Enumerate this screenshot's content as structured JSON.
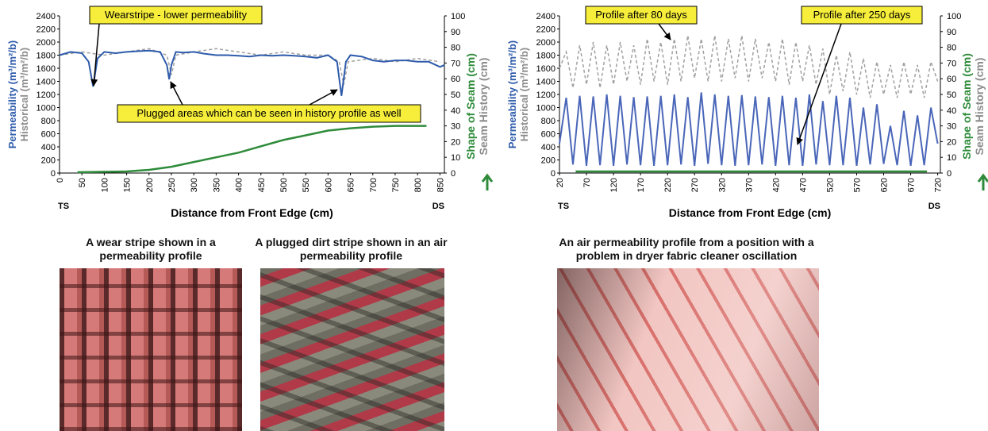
{
  "chart_data": [
    {
      "type": "line",
      "ylabels": [
        "Permeability (m³/m²/b)",
        "Historical (m³/m²/b)"
      ],
      "y2labels": [
        "Shape of Seam (cm)",
        "Seam History (cm)"
      ],
      "ylabel_colors": [
        "#2e5bab",
        "#8c8c8c"
      ],
      "y2label_colors": [
        "#2e8b3a",
        "#8c8c8c"
      ],
      "xlabel": "Distance from Front Edge (cm)",
      "end_labels": [
        "TS",
        "DS"
      ],
      "annotations": [
        "Wearstripe - lower permeability",
        "Plugged areas which can be seen in history profile as well"
      ],
      "xlim": [
        0,
        860
      ],
      "xticks": [
        0,
        50,
        100,
        150,
        200,
        250,
        300,
        350,
        400,
        450,
        500,
        550,
        600,
        650,
        700,
        750,
        800,
        850
      ],
      "ylim": [
        0,
        2400
      ],
      "yticks": [
        0,
        200,
        400,
        600,
        800,
        1000,
        1200,
        1400,
        1600,
        1800,
        2000,
        2200,
        2400
      ],
      "y2lim": [
        0,
        100
      ],
      "y2ticks": [
        0,
        10,
        20,
        30,
        40,
        50,
        60,
        70,
        80,
        90,
        100
      ],
      "series": [
        {
          "color": "#a0a0a0",
          "dashed": true,
          "x": [
            0,
            50,
            100,
            150,
            200,
            240,
            250,
            260,
            300,
            350,
            400,
            450,
            500,
            550,
            600,
            625,
            635,
            645,
            700,
            750,
            800,
            850
          ],
          "values": [
            1800,
            1850,
            1800,
            1850,
            1900,
            1800,
            1500,
            1800,
            1850,
            1900,
            1850,
            1800,
            1850,
            1800,
            1800,
            1700,
            1350,
            1700,
            1750,
            1700,
            1750,
            1700
          ]
        },
        {
          "color": "#2e5bab",
          "dashed": false,
          "x": [
            0,
            25,
            50,
            65,
            75,
            85,
            100,
            125,
            150,
            175,
            200,
            225,
            240,
            245,
            250,
            260,
            275,
            300,
            325,
            350,
            375,
            400,
            425,
            450,
            475,
            500,
            525,
            550,
            575,
            600,
            620,
            630,
            640,
            650,
            675,
            700,
            725,
            750,
            775,
            800,
            825,
            850,
            860
          ],
          "values": [
            1800,
            1850,
            1830,
            1700,
            1320,
            1750,
            1850,
            1830,
            1850,
            1860,
            1870,
            1850,
            1650,
            1430,
            1650,
            1850,
            1840,
            1850,
            1820,
            1800,
            1800,
            1790,
            1780,
            1800,
            1790,
            1800,
            1790,
            1780,
            1760,
            1800,
            1700,
            1180,
            1700,
            1800,
            1780,
            1720,
            1700,
            1720,
            1720,
            1700,
            1700,
            1620,
            1650
          ]
        },
        {
          "color": "#2e8b3a",
          "dashed": false,
          "axis": "y2",
          "x": [
            40,
            150,
            200,
            250,
            300,
            350,
            400,
            450,
            500,
            550,
            600,
            650,
            700,
            750,
            820
          ],
          "values": [
            0.5,
            1,
            2,
            4,
            7,
            10,
            13,
            17,
            21,
            24,
            27,
            28.5,
            29.5,
            30,
            30
          ]
        }
      ]
    },
    {
      "type": "line",
      "ylabels": [
        "Permeability (m³/m²/b)",
        "Historical (m³/m²/b)"
      ],
      "y2labels": [
        "Shape of Seam (cm)",
        "Seam History (cm)"
      ],
      "ylabel_colors": [
        "#2e5bab",
        "#8c8c8c"
      ],
      "y2label_colors": [
        "#2e8b3a",
        "#8c8c8c"
      ],
      "xlabel": "Distance from Front Edge (cm)",
      "end_labels": [
        "TS",
        "DS"
      ],
      "annotations": [
        "Profile after 80 days",
        "Profile after 250 days"
      ],
      "xlim": [
        20,
        725
      ],
      "xticks": [
        20,
        70,
        120,
        170,
        220,
        270,
        320,
        370,
        420,
        470,
        520,
        570,
        620,
        670,
        720
      ],
      "ylim": [
        0,
        2400
      ],
      "yticks": [
        0,
        200,
        400,
        600,
        800,
        1000,
        1200,
        1400,
        1600,
        1800,
        2000,
        2200,
        2400
      ],
      "y2lim": [
        0,
        100
      ],
      "y2ticks": [
        0,
        10,
        20,
        30,
        40,
        50,
        60,
        70,
        80,
        90,
        100
      ],
      "series": [
        {
          "color": "#a0a0a0",
          "dashed": true,
          "x": [
            20,
            32.5,
            45,
            57.5,
            70,
            82.5,
            95,
            107.5,
            120,
            132.5,
            145,
            157.5,
            170,
            182.5,
            195,
            207.5,
            220,
            232.5,
            245,
            257.5,
            270,
            282.5,
            295,
            307.5,
            320,
            332.5,
            345,
            357.5,
            370,
            382.5,
            395,
            407.5,
            420,
            432.5,
            445,
            457.5,
            470,
            482.5,
            495,
            507.5,
            520,
            532.5,
            545,
            557.5,
            570,
            582.5,
            595,
            607.5,
            620,
            632.5,
            645,
            657.5,
            670,
            682.5,
            695,
            707.5,
            720
          ],
          "values": [
            1600,
            1850,
            1300,
            1950,
            1350,
            2000,
            1300,
            1950,
            1350,
            2000,
            1400,
            1950,
            1350,
            2050,
            1400,
            2000,
            1350,
            2050,
            1400,
            2100,
            1450,
            2050,
            1400,
            2100,
            1400,
            2050,
            1450,
            2100,
            1400,
            2050,
            1450,
            2000,
            1400,
            2050,
            1350,
            2000,
            1400,
            1950,
            1350,
            1900,
            1200,
            1800,
            1250,
            1850,
            1200,
            1750,
            1150,
            1700,
            1200,
            1650,
            1150,
            1700,
            1200,
            1650,
            1150,
            1700,
            1400
          ]
        },
        {
          "color": "#4a66b8",
          "dashed": false,
          "x": [
            20,
            32.5,
            45,
            57.5,
            70,
            82.5,
            95,
            107.5,
            120,
            132.5,
            145,
            157.5,
            170,
            182.5,
            195,
            207.5,
            220,
            232.5,
            245,
            257.5,
            270,
            282.5,
            295,
            307.5,
            320,
            332.5,
            345,
            357.5,
            370,
            382.5,
            395,
            407.5,
            420,
            432.5,
            445,
            457.5,
            470,
            482.5,
            495,
            507.5,
            520,
            532.5,
            545,
            557.5,
            570,
            582.5,
            595,
            607.5,
            620,
            632.5,
            645,
            657.5,
            670,
            682.5,
            695,
            707.5,
            720
          ],
          "values": [
            450,
            1150,
            130,
            1180,
            110,
            1170,
            120,
            1200,
            110,
            1180,
            130,
            1160,
            120,
            1170,
            110,
            1180,
            120,
            1200,
            130,
            1160,
            110,
            1230,
            140,
            1200,
            120,
            1180,
            110,
            1190,
            120,
            1170,
            130,
            1160,
            110,
            1180,
            120,
            1150,
            110,
            1200,
            130,
            1100,
            120,
            1180,
            120,
            1150,
            110,
            1000,
            130,
            1050,
            140,
            720,
            120,
            950,
            110,
            880,
            120,
            1000,
            450
          ]
        },
        {
          "color": "#2e8b3a",
          "dashed": false,
          "axis": "y2",
          "x": [
            50,
            700
          ],
          "values": [
            1,
            1
          ]
        }
      ]
    }
  ],
  "captions": [
    "A wear stripe shown in a permeability profile",
    "A plugged dirt stripe shown in an air permeability profile",
    "An air permeability profile from a position with a problem in dryer fabric cleaner oscillation"
  ]
}
